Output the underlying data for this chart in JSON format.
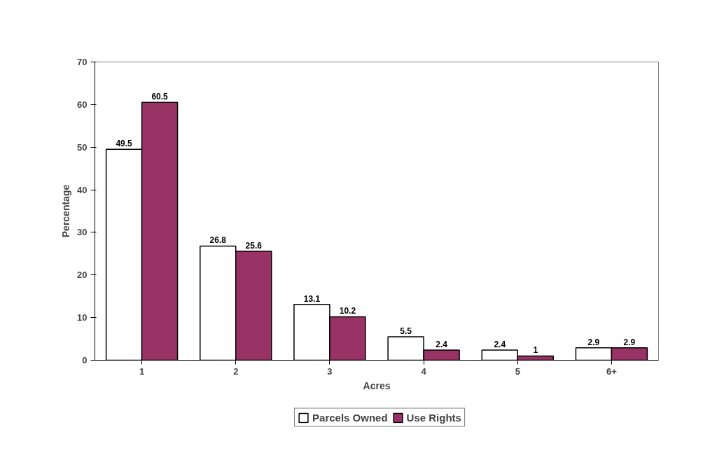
{
  "chart_data": {
    "type": "bar",
    "xlabel": "Acres",
    "ylabel": "Percentage",
    "categories": [
      "1",
      "2",
      "3",
      "4",
      "5",
      "6+"
    ],
    "series": [
      {
        "name": "Parcels Owned",
        "color": "#ffffff",
        "values": [
          49.5,
          26.8,
          13.1,
          5.5,
          2.4,
          2.9
        ]
      },
      {
        "name": "Use Rights",
        "color": "#993366",
        "values": [
          60.5,
          25.6,
          10.2,
          2.4,
          1,
          2.9
        ]
      }
    ],
    "ylim": [
      0,
      70
    ],
    "yticks": [
      0,
      10,
      20,
      30,
      40,
      50,
      60,
      70
    ],
    "grid": false,
    "legend": "bottom",
    "data_labels": true
  }
}
